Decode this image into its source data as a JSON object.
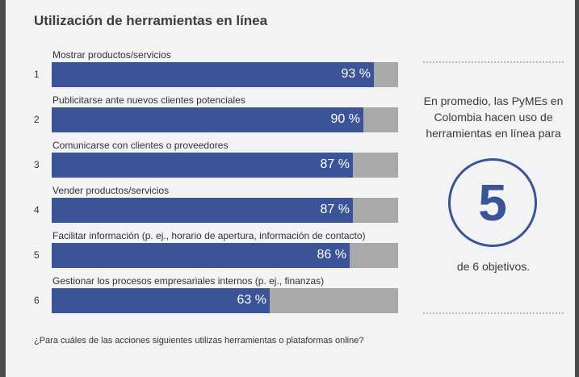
{
  "title": "Utilización de herramientas en línea",
  "chart_data": {
    "type": "bar",
    "orientation": "horizontal",
    "title": "Utilización de herramientas en línea",
    "categories": [
      "Mostrar productos/servicios",
      "Publicitarse ante nuevos clientes potenciales",
      "Comunicarse con clientes o proveedores",
      "Vender productos/servicios",
      "Facilitar información (p. ej., horario de apertura, información de contacto)",
      "Gestionar los procesos empresariales internos (p. ej., finanzas)"
    ],
    "ranks": [
      "1",
      "2",
      "3",
      "4",
      "5",
      "6"
    ],
    "values": [
      93,
      90,
      87,
      87,
      86,
      63
    ],
    "value_labels": [
      "93 %",
      "90 %",
      "87 %",
      "87 %",
      "86 %",
      "63 %"
    ],
    "xlim": [
      0,
      100
    ],
    "grid": false,
    "colors": {
      "fill": "#3b5497",
      "track": "#a8a9ab"
    }
  },
  "side_panel": {
    "text": "En promedio, las PyMEs en Colombia hacen uso de herramientas en línea para",
    "big_number": "5",
    "sub_text": "de 6 objetivos."
  },
  "footnote": "¿Para cuáles de las acciones siguientes utilizas herramientas o plataformas online?"
}
